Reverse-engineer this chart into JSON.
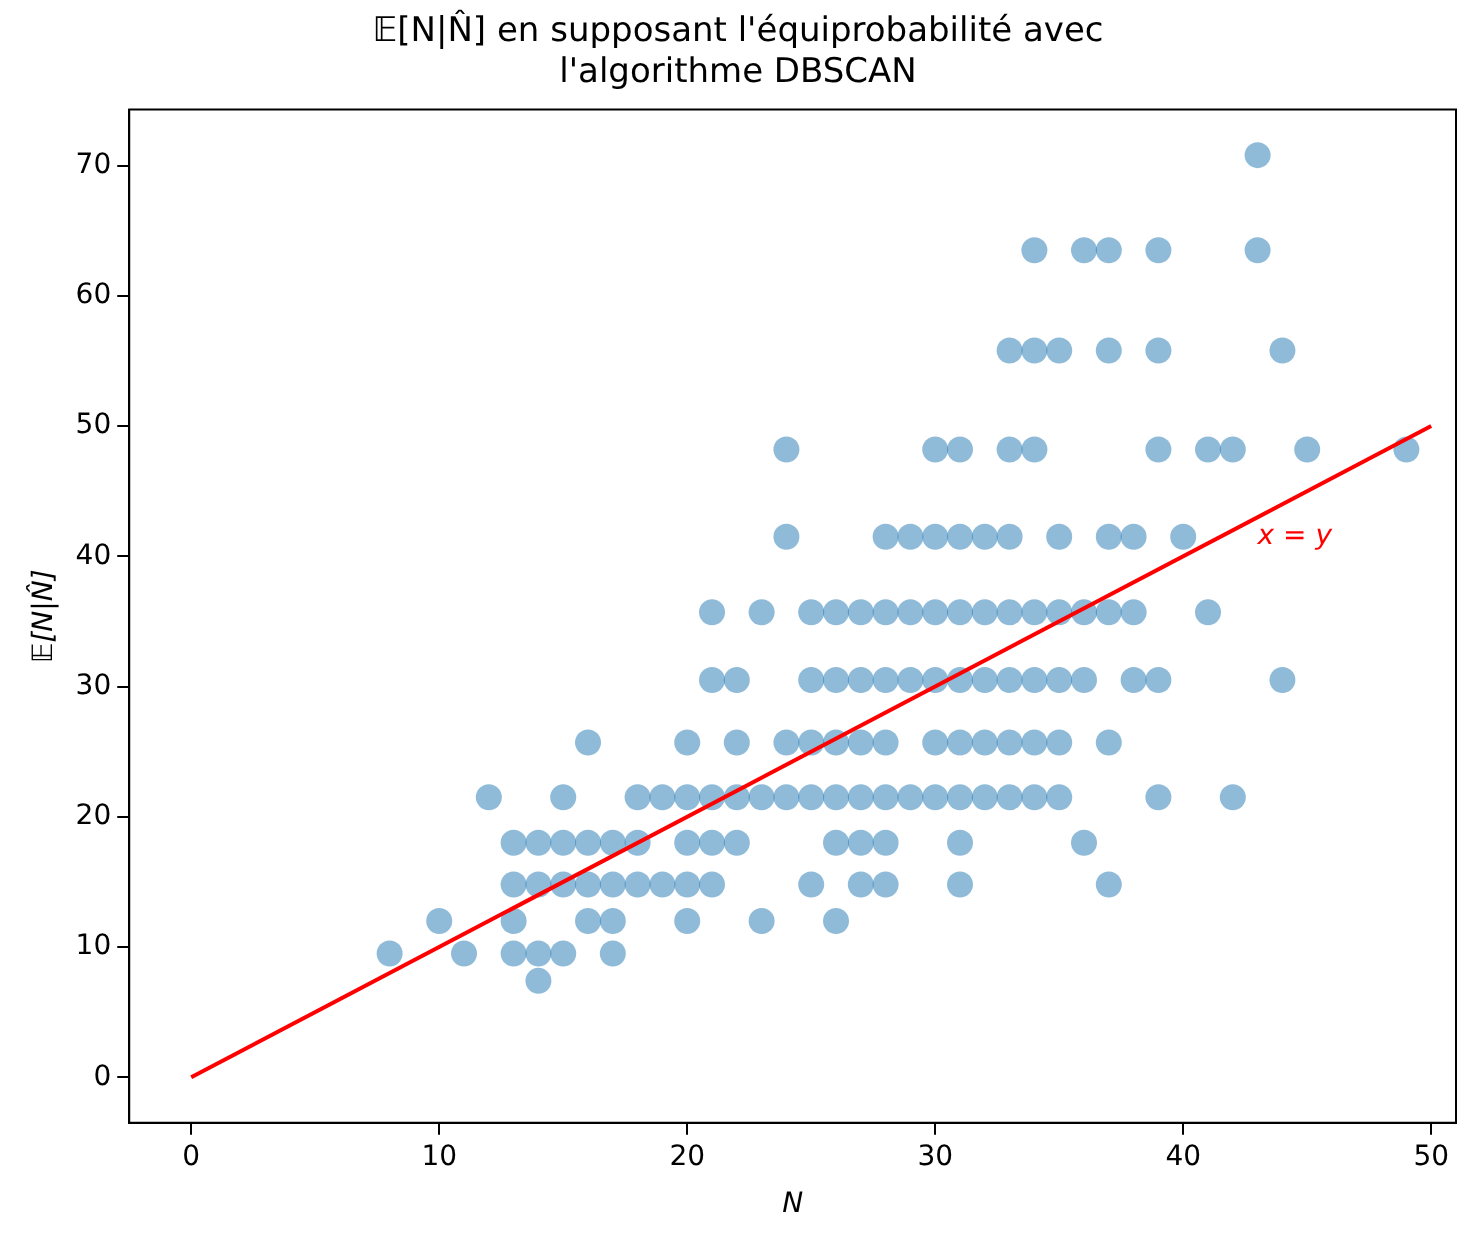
{
  "chart_data": {
    "type": "scatter",
    "title": "𝔼[N|N̂] en supposant l'équiprobabilité avec\nl'algorithme DBSCAN",
    "xlabel": "N",
    "ylabel": "𝔼[N|N̂]",
    "xlim": [
      -2.5,
      51
    ],
    "ylim": [
      -3.5,
      74.3
    ],
    "xticks": [
      0,
      10,
      20,
      30,
      40,
      50
    ],
    "yticks": [
      0,
      10,
      20,
      30,
      40,
      50,
      60,
      70
    ],
    "grid": false,
    "legend": false,
    "marker": "circle",
    "series": [
      {
        "color": "#1f77b4",
        "x": [
          43,
          34,
          36,
          37,
          39,
          43,
          33,
          34,
          35,
          37,
          39,
          44,
          24,
          30,
          31,
          33,
          34,
          39,
          41,
          42,
          45,
          49,
          24,
          28,
          29,
          30,
          31,
          32,
          33,
          35,
          37,
          38,
          40,
          21,
          23,
          25,
          26,
          27,
          28,
          29,
          30,
          31,
          32,
          33,
          34,
          35,
          36,
          37,
          38,
          41,
          21,
          22,
          25,
          26,
          27,
          28,
          29,
          30,
          31,
          32,
          33,
          34,
          35,
          36,
          38,
          39,
          44,
          16,
          20,
          22,
          24,
          25,
          26,
          27,
          28,
          30,
          31,
          32,
          33,
          34,
          35,
          37,
          12,
          15,
          18,
          19,
          20,
          21,
          22,
          23,
          24,
          25,
          26,
          27,
          28,
          29,
          30,
          31,
          32,
          33,
          34,
          35,
          39,
          42,
          13,
          14,
          15,
          16,
          17,
          18,
          20,
          21,
          22,
          26,
          27,
          28,
          31,
          36,
          13,
          14,
          15,
          16,
          17,
          18,
          19,
          20,
          21,
          25,
          27,
          28,
          31,
          37,
          10,
          13,
          16,
          17,
          20,
          23,
          26,
          8,
          11,
          13,
          14,
          15,
          17,
          14
        ],
        "values": [
          70.8,
          63.5,
          63.5,
          63.5,
          63.5,
          63.5,
          55.8,
          55.8,
          55.8,
          55.8,
          55.8,
          55.8,
          48.2,
          48.2,
          48.2,
          48.2,
          48.2,
          48.2,
          48.2,
          48.2,
          48.2,
          48.2,
          41.5,
          41.5,
          41.5,
          41.5,
          41.5,
          41.5,
          41.5,
          41.5,
          41.5,
          41.5,
          41.5,
          35.7,
          35.7,
          35.7,
          35.7,
          35.7,
          35.7,
          35.7,
          35.7,
          35.7,
          35.7,
          35.7,
          35.7,
          35.7,
          35.7,
          35.7,
          35.7,
          35.7,
          30.5,
          30.5,
          30.5,
          30.5,
          30.5,
          30.5,
          30.5,
          30.5,
          30.5,
          30.5,
          30.5,
          30.5,
          30.5,
          30.5,
          30.5,
          30.5,
          30.5,
          25.7,
          25.7,
          25.7,
          25.7,
          25.7,
          25.7,
          25.7,
          25.7,
          25.7,
          25.7,
          25.7,
          25.7,
          25.7,
          25.7,
          25.7,
          21.5,
          21.5,
          21.5,
          21.5,
          21.5,
          21.5,
          21.5,
          21.5,
          21.5,
          21.5,
          21.5,
          21.5,
          21.5,
          21.5,
          21.5,
          21.5,
          21.5,
          21.5,
          21.5,
          21.5,
          21.5,
          21.5,
          18,
          18,
          18,
          18,
          18,
          18,
          18,
          18,
          18,
          18,
          18,
          18,
          18,
          18,
          14.8,
          14.8,
          14.8,
          14.8,
          14.8,
          14.8,
          14.8,
          14.8,
          14.8,
          14.8,
          14.8,
          14.8,
          14.8,
          14.8,
          12,
          12,
          12,
          12,
          12,
          12,
          12,
          9.5,
          9.5,
          9.5,
          9.5,
          9.5,
          9.5,
          7.4
        ]
      },
      {
        "type": "line",
        "name": "x = y",
        "color": "#ff0000",
        "marker": "none",
        "x": [
          0,
          50
        ],
        "values": [
          0,
          50
        ]
      }
    ]
  }
}
